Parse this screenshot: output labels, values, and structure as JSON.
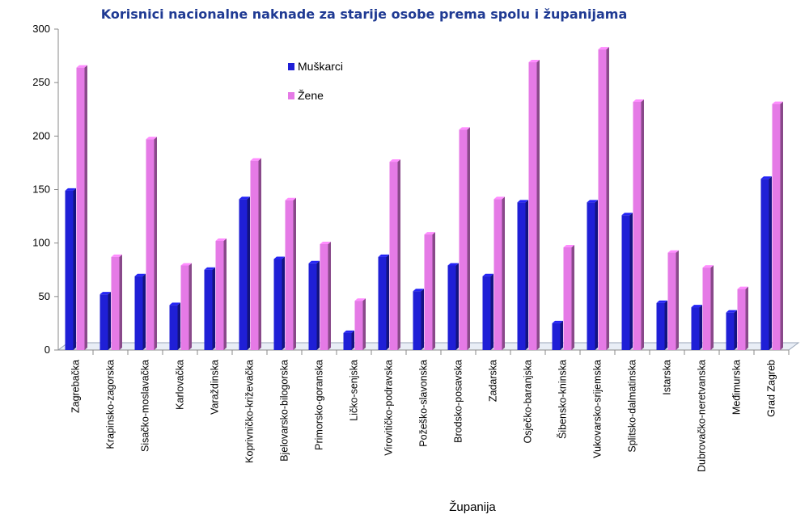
{
  "chart_data": {
    "type": "bar",
    "title": "Korisnici nacionalne naknade za starije osobe prema spolu i županijama",
    "xlabel": "Županija",
    "ylabel": "",
    "ylim": [
      0,
      300
    ],
    "yticks": [
      0,
      50,
      100,
      150,
      200,
      250,
      300
    ],
    "grid": false,
    "legend_position": "top-center",
    "categories": [
      "Zagrebačka",
      "Krapinsko-zagorska",
      "Sisačko-moslavačka",
      "Karlovačka",
      "Varaždinska",
      "Koprivničko-križevačka",
      "Bjelovarsko-bilogorska",
      "Primorsko-goranska",
      "Ličko-senjska",
      "Virovitičko-podravska",
      "Požeško-slavonska",
      "Brodsko-posavska",
      "Zadarska",
      "Osječko-baranjska",
      "Šibensko-kninska",
      "Vukovarsko-srijemska",
      "Splitsko-dalmatinska",
      "Istarska",
      "Dubrovačko-neretvanska",
      "Međimurska",
      "Grad Zagreb"
    ],
    "series": [
      {
        "name": "Muškarci",
        "color": "#1f1fd6",
        "values": [
          149,
          52,
          69,
          42,
          75,
          141,
          85,
          81,
          16,
          87,
          55,
          79,
          69,
          138,
          25,
          138,
          126,
          44,
          40,
          35,
          160
        ]
      },
      {
        "name": "Žene",
        "color": "#e57ae6",
        "values": [
          264,
          87,
          197,
          79,
          102,
          177,
          140,
          99,
          46,
          176,
          108,
          206,
          141,
          269,
          96,
          281,
          232,
          91,
          77,
          57,
          230
        ]
      }
    ]
  }
}
